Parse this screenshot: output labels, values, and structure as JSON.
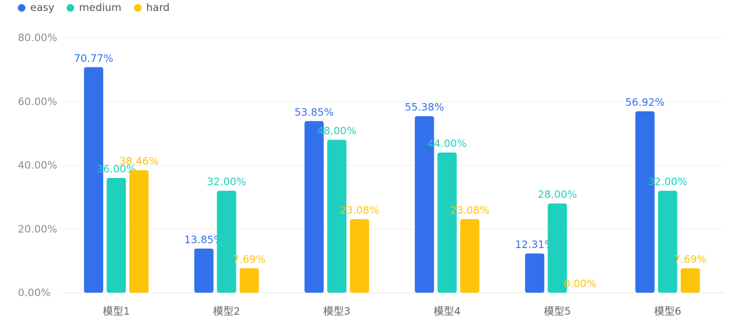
{
  "chart_data": {
    "type": "bar",
    "categories": [
      "模型1",
      "模型2",
      "模型3",
      "模型4",
      "模型5",
      "模型6"
    ],
    "series": [
      {
        "name": "easy",
        "color": "#3370eb",
        "values": [
          70.77,
          13.85,
          53.85,
          55.38,
          12.31,
          56.92
        ],
        "labels": [
          "70.77%",
          "13.85%",
          "53.85%",
          "55.38%",
          "12.31%",
          "56.92%"
        ]
      },
      {
        "name": "medium",
        "color": "#1fd0be",
        "values": [
          36.0,
          32.0,
          48.0,
          44.0,
          28.0,
          32.0
        ],
        "labels": [
          "36.00%",
          "32.00%",
          "48.00%",
          "44.00%",
          "28.00%",
          "32.00%"
        ]
      },
      {
        "name": "hard",
        "color": "#fdc409",
        "values": [
          38.46,
          7.69,
          23.08,
          23.08,
          0.0,
          7.69
        ],
        "labels": [
          "38.46%",
          "7.69%",
          "23.08%",
          "23.08%",
          "0.00%",
          "7.69%"
        ]
      }
    ],
    "y_ticks": [
      "0.00%",
      "20.00%",
      "40.00%",
      "60.00%",
      "80.00%"
    ],
    "y_tick_values": [
      0,
      20,
      40,
      60,
      80
    ],
    "ylim": [
      0,
      80
    ],
    "title": "",
    "xlabel": "",
    "ylabel": "",
    "grid": true,
    "legend_position": "top-left"
  }
}
